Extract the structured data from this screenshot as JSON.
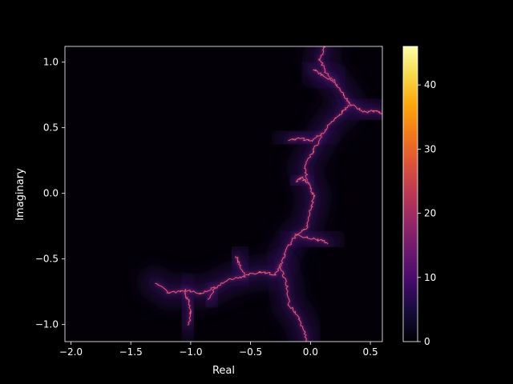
{
  "theme": {
    "background": "#000000",
    "foreground": "#ffffff",
    "colormap": "inferno"
  },
  "chart_data": {
    "type": "heatmap",
    "title": "",
    "xlabel": "Real",
    "ylabel": "Imaginary",
    "xlim": [
      -2.05,
      0.6
    ],
    "ylim": [
      -1.13,
      1.12
    ],
    "xticks": [
      -2.0,
      -1.5,
      -1.0,
      -0.5,
      0.0,
      0.5
    ],
    "xtick_labels": [
      "−2.0",
      "−1.5",
      "−1.0",
      "−0.5",
      "0.0",
      "0.5"
    ],
    "yticks": [
      -1.0,
      -0.5,
      0.0,
      0.5,
      1.0
    ],
    "ytick_labels": [
      "−1.0",
      "−0.5",
      "0.0",
      "0.5",
      "1.0"
    ],
    "colorbar": {
      "range": [
        0,
        46
      ],
      "ticks": [
        0,
        10,
        20,
        30,
        40
      ],
      "tick_labels": [
        "0",
        "10",
        "20",
        "30",
        "40"
      ]
    },
    "description_values": {
      "fractal_max_value": 46
    }
  }
}
